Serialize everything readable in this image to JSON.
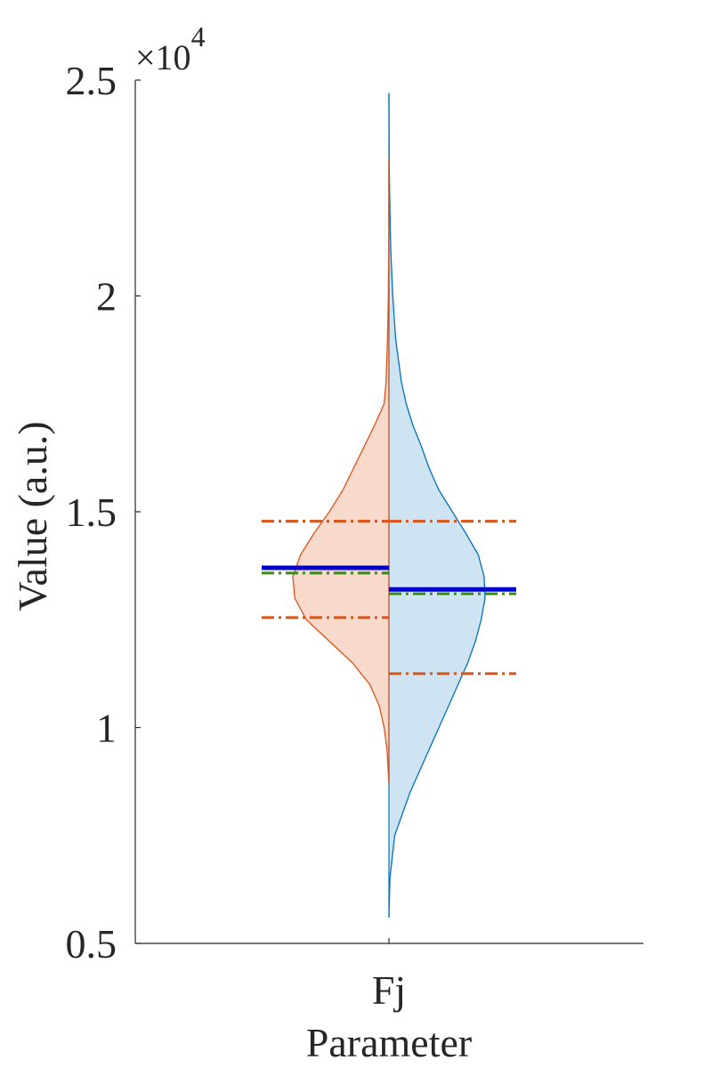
{
  "chart_data": {
    "type": "violin",
    "subtype": "split",
    "xlabel": "Parameter",
    "ylabel": "Value (a.u.)",
    "y_multiplier": {
      "base": "×10",
      "exponent": "4"
    },
    "ylim": [
      0.5,
      2.5
    ],
    "yticks": [
      {
        "value": 0.5,
        "label": "0.5"
      },
      {
        "value": 1,
        "label": "1"
      },
      {
        "value": 1.5,
        "label": "1.5"
      },
      {
        "value": 2,
        "label": "2"
      },
      {
        "value": 2.5,
        "label": "2.5"
      }
    ],
    "categories": [
      "Fj"
    ],
    "colors": {
      "left_fill": "#f8dacd",
      "left_edge": "#d95319",
      "right_fill": "#cfe4f3",
      "right_edge": "#0072bd",
      "mean_line": "#0000cc",
      "median_line": "#3a8a1a",
      "quartile_line": "#d95319"
    },
    "series": [
      {
        "side": "left",
        "mean": 1.37,
        "median": 1.358,
        "quartiles": [
          1.255,
          1.478
        ],
        "density": [
          [
            0.87,
            0.0
          ],
          [
            0.95,
            0.02
          ],
          [
            1.0,
            0.05
          ],
          [
            1.05,
            0.1
          ],
          [
            1.1,
            0.2
          ],
          [
            1.15,
            0.38
          ],
          [
            1.2,
            0.62
          ],
          [
            1.25,
            0.86
          ],
          [
            1.3,
            0.98
          ],
          [
            1.35,
            1.0
          ],
          [
            1.4,
            0.92
          ],
          [
            1.45,
            0.78
          ],
          [
            1.5,
            0.62
          ],
          [
            1.55,
            0.48
          ],
          [
            1.6,
            0.37
          ],
          [
            1.65,
            0.26
          ],
          [
            1.7,
            0.15
          ],
          [
            1.75,
            0.05
          ],
          [
            1.8,
            0.03
          ],
          [
            1.9,
            0.015
          ],
          [
            2.0,
            0.006
          ],
          [
            2.1,
            0.002
          ],
          [
            2.2,
            0.001
          ],
          [
            2.32,
            0.0
          ]
        ]
      },
      {
        "side": "right",
        "mean": 1.32,
        "median": 1.31,
        "quartiles": [
          1.125,
          1.478
        ],
        "density": [
          [
            0.56,
            0.0
          ],
          [
            0.65,
            0.01
          ],
          [
            0.75,
            0.06
          ],
          [
            0.8,
            0.14
          ],
          [
            0.85,
            0.22
          ],
          [
            0.9,
            0.32
          ],
          [
            0.95,
            0.42
          ],
          [
            1.0,
            0.52
          ],
          [
            1.05,
            0.62
          ],
          [
            1.1,
            0.72
          ],
          [
            1.15,
            0.82
          ],
          [
            1.2,
            0.9
          ],
          [
            1.25,
            0.96
          ],
          [
            1.3,
            1.0
          ],
          [
            1.35,
            0.99
          ],
          [
            1.4,
            0.93
          ],
          [
            1.45,
            0.8
          ],
          [
            1.5,
            0.66
          ],
          [
            1.55,
            0.52
          ],
          [
            1.6,
            0.42
          ],
          [
            1.65,
            0.34
          ],
          [
            1.7,
            0.25
          ],
          [
            1.75,
            0.18
          ],
          [
            1.8,
            0.13
          ],
          [
            1.85,
            0.1
          ],
          [
            1.9,
            0.07
          ],
          [
            2.0,
            0.04
          ],
          [
            2.1,
            0.02
          ],
          [
            2.2,
            0.01
          ],
          [
            2.3,
            0.003
          ],
          [
            2.47,
            0.0
          ]
        ]
      }
    ]
  }
}
